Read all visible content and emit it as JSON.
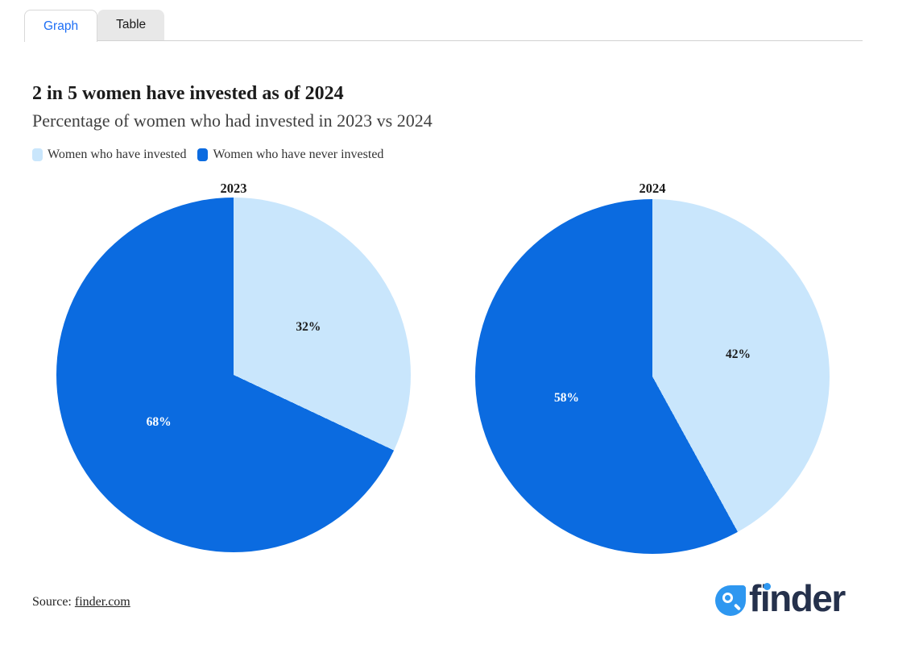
{
  "tabs": [
    {
      "label": "Graph",
      "active": true
    },
    {
      "label": "Table",
      "active": false
    }
  ],
  "title": "2 in 5 women have invested as of 2024",
  "subtitle": "Percentage of women who had invested in 2023 vs 2024",
  "legend": [
    {
      "label": "Women who have invested",
      "color": "#c9e6fc"
    },
    {
      "label": "Women who have never invested",
      "color": "#0b6be0"
    }
  ],
  "chart_data": {
    "type": "pie",
    "title": "2 in 5 women have invested as of 2024",
    "subtitle": "Percentage of women who had invested in 2023 vs 2024",
    "legend_position": "top-left",
    "start_angle_deg": 0,
    "direction": "clockwise",
    "pies": [
      {
        "label": "2023",
        "slices": [
          {
            "name": "Women who have invested",
            "value": 32,
            "color": "#c9e6fc",
            "text_color": "#1b1b1b"
          },
          {
            "name": "Women who have never invested",
            "value": 68,
            "color": "#0b6be0",
            "text_color": "#ffffff"
          }
        ]
      },
      {
        "label": "2024",
        "slices": [
          {
            "name": "Women who have invested",
            "value": 42,
            "color": "#c9e6fc",
            "text_color": "#1b1b1b"
          },
          {
            "name": "Women who have never invested",
            "value": 58,
            "color": "#0b6be0",
            "text_color": "#ffffff"
          }
        ]
      }
    ]
  },
  "source": {
    "prefix": "Source: ",
    "link_text": "finder.com"
  },
  "logo": {
    "text": "finder"
  },
  "colors": {
    "accent_blue": "#1d6ef5",
    "pie_dark": "#0b6be0",
    "pie_light": "#c9e6fc",
    "logo_navy": "#25314c",
    "logo_blue": "#2e97f0"
  }
}
